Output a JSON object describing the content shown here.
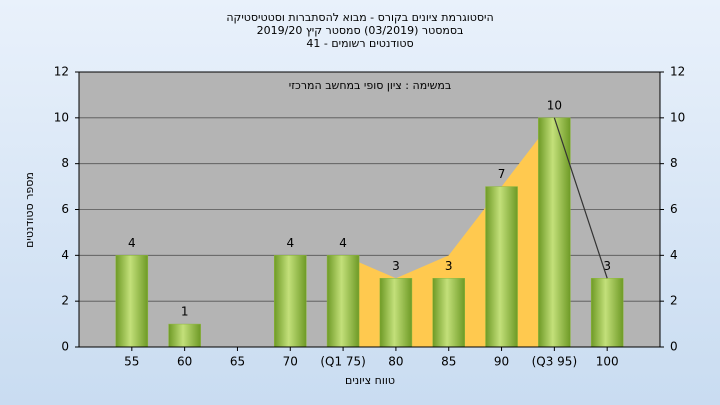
{
  "chart_data": {
    "type": "bar",
    "title": "היסטוגרמת ציונים בקורס - מבוא להסתברות וסטטיסטיקה",
    "subtitle": "בסמסטר (03/2019) סמסטר קיץ 2019/20",
    "subtitle2": "סטודנטים רשומים - 41",
    "annotation": "במשימה : ציון סופי במחשב המרכזי",
    "x_label": "טווח ציונים",
    "y_label": "מספר סטודנטים",
    "categories": [
      "55",
      "60",
      "65",
      "70",
      "(Q1 75)",
      "80",
      "85",
      "90",
      "(Q3 95)",
      "100"
    ],
    "values": [
      4,
      1,
      null,
      4,
      4,
      3,
      3,
      7,
      10,
      3
    ],
    "color": "#8db83c",
    "area": {
      "color": "#ffc94f",
      "values": [
        null,
        null,
        null,
        null,
        4,
        3,
        4,
        7,
        10,
        null
      ]
    },
    "line": {
      "color": "#333333",
      "values": [
        null,
        null,
        null,
        null,
        null,
        null,
        null,
        null,
        10,
        3
      ]
    },
    "ylim": [
      0,
      12
    ],
    "yticks": [
      0,
      2,
      4,
      6,
      8,
      10,
      12
    ],
    "grid": true
  }
}
